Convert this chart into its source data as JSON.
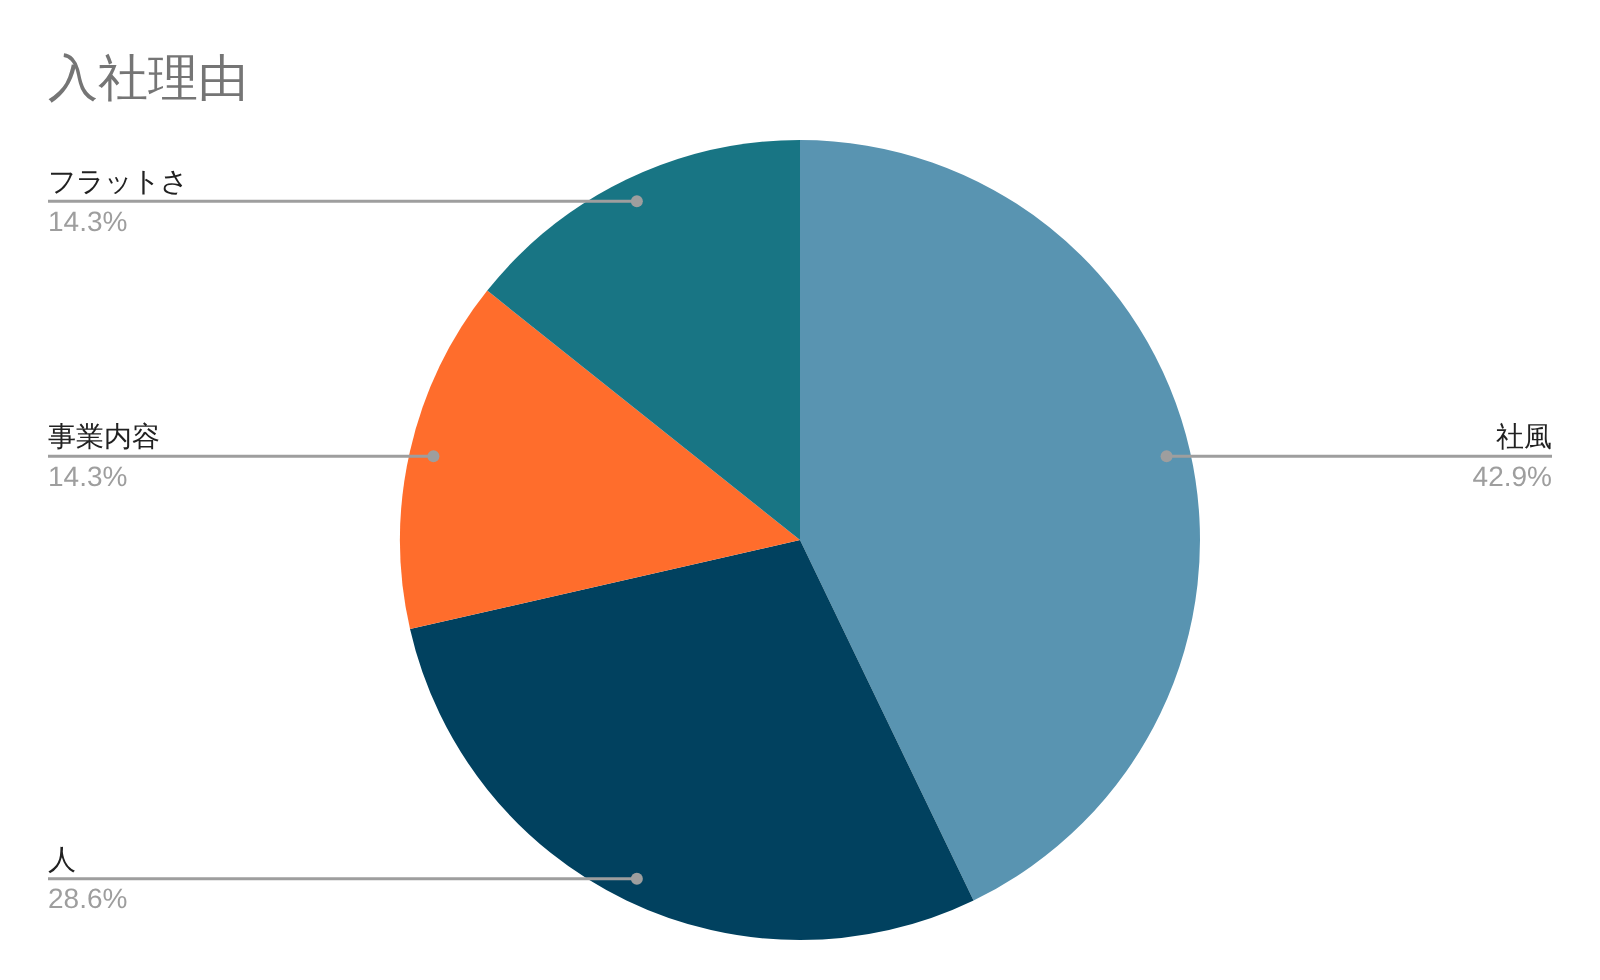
{
  "chart_data": {
    "type": "pie",
    "title": "入社理由",
    "categories": [
      "社風",
      "人",
      "事業内容",
      "フラットさ"
    ],
    "values": [
      42.9,
      28.6,
      14.3,
      14.3
    ],
    "colors": [
      "#5994b1",
      "#01415f",
      "#ff6d2c",
      "#187584"
    ],
    "value_labels": [
      "42.9%",
      "28.6%",
      "14.3%",
      "14.3%"
    ],
    "legend": false
  }
}
